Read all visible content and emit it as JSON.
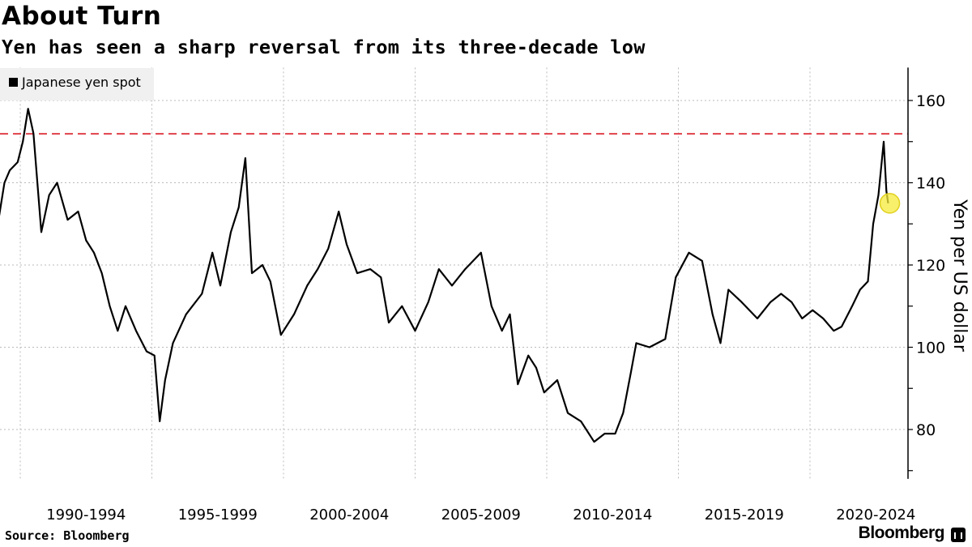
{
  "chart_data": {
    "type": "line",
    "title": "About Turn",
    "subtitle": "Yen has seen a sharp reversal from its three-decade low",
    "legend": [
      "Japanese yen spot"
    ],
    "legend_position": "top-left",
    "ylabel": "Yen per US dollar",
    "ylim": [
      68,
      168
    ],
    "yticks": [
      80,
      100,
      120,
      140,
      160
    ],
    "xlim": [
      1989.2,
      2023.3
    ],
    "x_gridlines": [
      1990,
      1995,
      2000,
      2005,
      2010,
      2015,
      2020
    ],
    "xtick_labels": [
      {
        "label": "1990-1994",
        "center": 1992.5
      },
      {
        "label": "1995-1999",
        "center": 1997.5
      },
      {
        "label": "2000-2004",
        "center": 2002.5
      },
      {
        "label": "2005-2009",
        "center": 2007.5
      },
      {
        "label": "2010-2014",
        "center": 2012.5
      },
      {
        "label": "2015-2019",
        "center": 2017.5
      },
      {
        "label": "2020-2024",
        "center": 2022.5
      }
    ],
    "reference_line": {
      "value": 151.9,
      "color": "#e0404a",
      "style": "dashed"
    },
    "highlight_point": {
      "x": 2022.97,
      "y": 135,
      "color": "#f5eb3a"
    },
    "series": [
      {
        "name": "Japanese yen spot",
        "color": "#000000",
        "x": [
          1989.2,
          1989.4,
          1989.6,
          1989.9,
          1990.1,
          1990.3,
          1990.5,
          1990.8,
          1991.1,
          1991.4,
          1991.8,
          1992.2,
          1992.5,
          1992.8,
          1993.1,
          1993.4,
          1993.7,
          1994.0,
          1994.4,
          1994.8,
          1995.1,
          1995.3,
          1995.5,
          1995.8,
          1996.3,
          1996.9,
          1997.3,
          1997.6,
          1998.0,
          1998.3,
          1998.55,
          1998.8,
          1999.2,
          1999.5,
          1999.9,
          2000.4,
          2000.9,
          2001.3,
          2001.7,
          2002.1,
          2002.4,
          2002.8,
          2003.3,
          2003.7,
          2004.0,
          2004.5,
          2005.0,
          2005.5,
          2005.9,
          2006.4,
          2006.9,
          2007.5,
          2007.9,
          2008.3,
          2008.6,
          2008.9,
          2009.3,
          2009.6,
          2009.9,
          2010.4,
          2010.8,
          2011.3,
          2011.8,
          2012.2,
          2012.6,
          2012.9,
          2013.2,
          2013.4,
          2013.9,
          2014.5,
          2014.9,
          2015.4,
          2015.9,
          2016.3,
          2016.6,
          2016.9,
          2017.4,
          2018.0,
          2018.5,
          2018.9,
          2019.3,
          2019.7,
          2020.1,
          2020.5,
          2020.9,
          2021.2,
          2021.6,
          2021.9,
          2022.2,
          2022.4,
          2022.6,
          2022.8,
          2022.9,
          2022.97
        ],
        "y": [
          132,
          140,
          143,
          145,
          150,
          158,
          152,
          128,
          137,
          140,
          131,
          133,
          126,
          123,
          118,
          110,
          104,
          110,
          104,
          99,
          98,
          82,
          92,
          101,
          108,
          113,
          123,
          115,
          128,
          134,
          146,
          118,
          120,
          116,
          103,
          108,
          115,
          119,
          124,
          133,
          125,
          118,
          119,
          117,
          106,
          110,
          104,
          111,
          119,
          115,
          119,
          123,
          110,
          104,
          108,
          91,
          98,
          95,
          89,
          92,
          84,
          82,
          77,
          79,
          79,
          84,
          94,
          101,
          100,
          102,
          117,
          123,
          121,
          108,
          101,
          114,
          111,
          107,
          111,
          113,
          111,
          107,
          109,
          107,
          104,
          105,
          110,
          114,
          116,
          130,
          137,
          150,
          138,
          135
        ]
      }
    ]
  },
  "source": "Source: Bloomberg",
  "brand": "Bloomberg"
}
